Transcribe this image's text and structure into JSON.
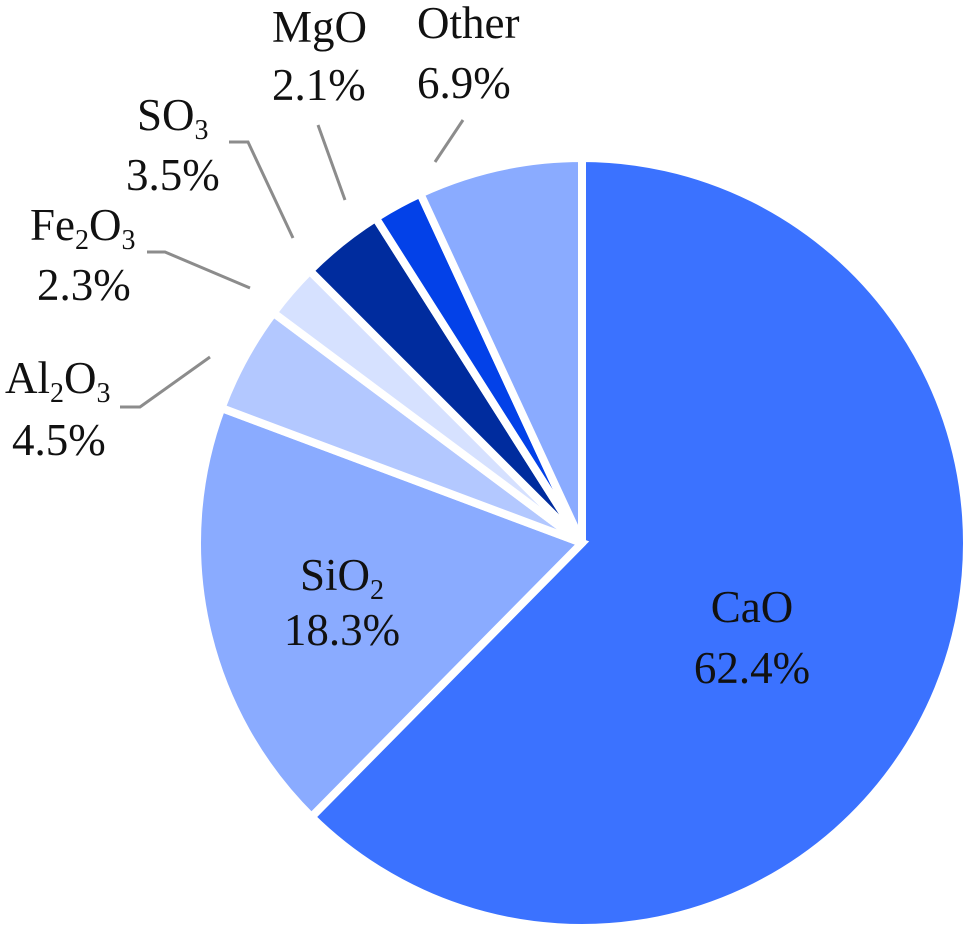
{
  "chart_data": {
    "type": "pie",
    "title": "",
    "start_angle_deg": 0,
    "direction": "clockwise",
    "categories": [
      "CaO",
      "SiO2",
      "Al2O3",
      "Fe2O3",
      "SO3",
      "MgO",
      "Other"
    ],
    "values": [
      62.4,
      18.3,
      4.5,
      2.3,
      3.5,
      2.1,
      6.9
    ],
    "labels": [
      {
        "name": "CaO",
        "base": "CaO",
        "sub": "",
        "tail": "",
        "value_text": "62.4%",
        "color": "#3b72ff",
        "position": "inside"
      },
      {
        "name": "SiO2",
        "base": "SiO",
        "sub": "2",
        "tail": "",
        "value_text": "18.3%",
        "color": "#8aabff",
        "position": "inside"
      },
      {
        "name": "Al2O3",
        "base": "Al",
        "sub": "2",
        "tail": "O",
        "sub2": "3",
        "value_text": "4.5%",
        "color": "#b3c8ff",
        "position": "outside"
      },
      {
        "name": "Fe2O3",
        "base": "Fe",
        "sub": "2",
        "tail": "O",
        "sub2": "3",
        "value_text": "2.3%",
        "color": "#d6e1ff",
        "position": "outside"
      },
      {
        "name": "SO3",
        "base": "SO",
        "sub": "3",
        "tail": "",
        "value_text": "3.5%",
        "color": "#002c9e",
        "position": "outside"
      },
      {
        "name": "MgO",
        "base": "MgO",
        "sub": "",
        "tail": "",
        "value_text": "2.1%",
        "color": "#0341e8",
        "position": "outside"
      },
      {
        "name": "Other",
        "base": "Other",
        "sub": "",
        "tail": "",
        "value_text": "6.9%",
        "color": "#8aabff",
        "position": "outside"
      }
    ],
    "legend": "none",
    "leader_line_color": "#8c8c8c"
  }
}
